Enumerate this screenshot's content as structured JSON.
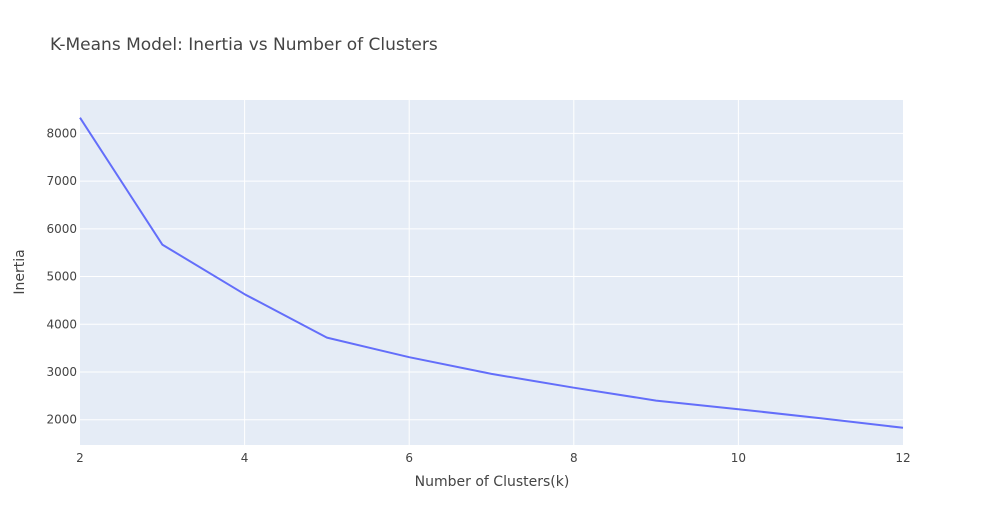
{
  "chart_data": {
    "type": "line",
    "title": "K-Means Model: Inertia vs Number of Clusters",
    "xlabel": "Number of Clusters(k)",
    "ylabel": "Inertia",
    "x": [
      2,
      3,
      4,
      5,
      6,
      7,
      8,
      9,
      10,
      11,
      12
    ],
    "series": [
      {
        "values": [
          8330,
          5670,
          4630,
          3720,
          3310,
          2960,
          2670,
          2400,
          2220,
          2030,
          1830
        ]
      }
    ],
    "xlim": [
      2,
      12
    ],
    "ylim": [
      1470,
      8700
    ],
    "xticks": [
      2,
      4,
      6,
      8,
      10,
      12
    ],
    "yticks": [
      2000,
      3000,
      4000,
      5000,
      6000,
      7000,
      8000
    ],
    "grid": true,
    "legend": "none",
    "colors": {
      "plot_bg": "#e5ecf6",
      "grid": "#ffffff",
      "line": "#636efa",
      "text": "#444444"
    }
  }
}
